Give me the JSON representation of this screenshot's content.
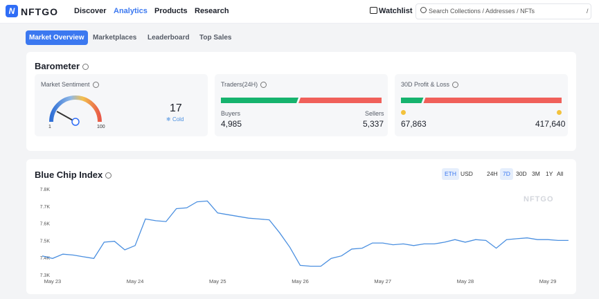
{
  "header": {
    "logo": "NFTGO",
    "nav": [
      "Discover",
      "Analytics",
      "Products",
      "Research"
    ],
    "watchlist": "Watchlist",
    "search_placeholder": "Search Collections / Addresses / NFTs",
    "search_shortcut": "/"
  },
  "tabs": [
    "Market Overview",
    "Marketplaces",
    "Leaderboard",
    "Top Sales"
  ],
  "barometer": {
    "title": "Barometer",
    "sentiment": {
      "label": "Market Sentiment",
      "value": 17,
      "status": "Cold",
      "min": 1,
      "max": 100
    },
    "traders": {
      "label": "Traders(24H)",
      "buyers_label": "Buyers",
      "sellers_label": "Sellers",
      "buyers": {
        "value": 4985,
        "label": "4,985"
      },
      "sellers": {
        "value": 5337,
        "label": "5,337"
      }
    },
    "profit_loss": {
      "label": "30D Profit & Loss",
      "profit": {
        "value": 67863,
        "label": "67,863"
      },
      "loss": {
        "value": 417640,
        "label": "417,640"
      }
    }
  },
  "chart_data": {
    "type": "line",
    "title": "Blue Chip Index",
    "currencies": [
      "ETH",
      "USD"
    ],
    "ranges": [
      "24H",
      "7D",
      "30D",
      "3M",
      "1Y",
      "All"
    ],
    "watermark": "NFTGO",
    "categories": [
      null,
      "May 23",
      null,
      null,
      null,
      null,
      null,
      null,
      null,
      "May 24",
      null,
      null,
      null,
      null,
      null,
      null,
      null,
      "May 25",
      null,
      null,
      null,
      null,
      null,
      null,
      null,
      "May 26",
      null,
      null,
      null,
      null,
      null,
      null,
      null,
      "May 27",
      null,
      null,
      null,
      null,
      null,
      null,
      null,
      "May 28",
      null,
      null,
      null,
      null,
      null,
      null,
      null,
      "May 29",
      null,
      null
    ],
    "values": [
      7410,
      7395,
      7420,
      7415,
      7405,
      7395,
      7490,
      7495,
      7445,
      7470,
      7625,
      7615,
      7610,
      7685,
      7690,
      7725,
      7730,
      7660,
      7650,
      7640,
      7630,
      7625,
      7620,
      7545,
      7460,
      7355,
      7350,
      7350,
      7395,
      7410,
      7450,
      7455,
      7485,
      7485,
      7475,
      7480,
      7470,
      7480,
      7480,
      7490,
      7505,
      7490,
      7505,
      7500,
      7455,
      7505,
      7510,
      7515,
      7505,
      7505,
      7500,
      7500
    ],
    "color": "#4a8fe0",
    "ylim": [
      7300,
      7800
    ],
    "yticks": [
      {
        "value": 7300,
        "label": "7.3K"
      },
      {
        "value": 7400,
        "label": "7.4K"
      },
      {
        "value": 7500,
        "label": "7.5K"
      },
      {
        "value": 7600,
        "label": "7.6K"
      },
      {
        "value": 7700,
        "label": "7.7K"
      },
      {
        "value": 7800,
        "label": "7.8K"
      }
    ]
  }
}
